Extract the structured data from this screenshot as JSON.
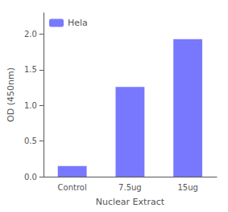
{
  "chart_data": {
    "type": "bar",
    "xlabel": "Nuclear Extract",
    "ylabel": "OD (450nm)",
    "categories": [
      "Control",
      "7.5ug",
      "15ug"
    ],
    "series": [
      {
        "name": "Hela",
        "color": "#7878ff",
        "values": [
          0.15,
          1.26,
          1.93
        ]
      }
    ],
    "ylim": [
      0,
      2.3
    ],
    "yticks": [
      {
        "value": 0.0,
        "label": "0.0"
      },
      0.5,
      {
        "value": 1.0,
        "label": "1.0"
      },
      1.5,
      {
        "value": 2.0,
        "label": "2.0"
      }
    ],
    "grid": false,
    "legend": "upper left"
  }
}
